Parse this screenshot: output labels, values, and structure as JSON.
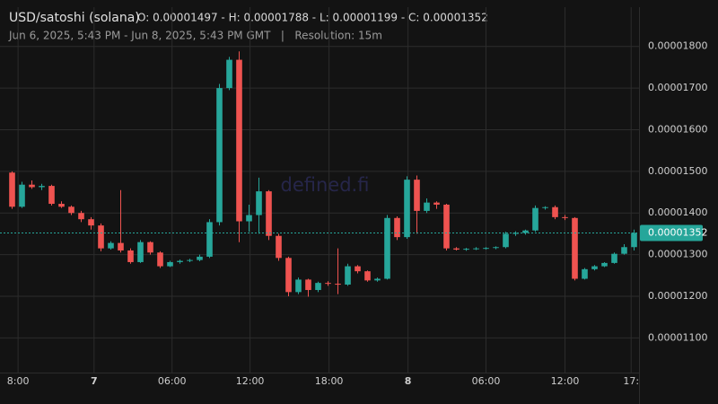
{
  "chart_data": {
    "type": "candlestick",
    "title": "USD/satoshi (solana)",
    "ohlc_text": "O: 0.00001497 - H: 0.00001788 - L: 0.00001199 - C: 0.00001352",
    "subtitle": "Jun 6, 2025, 5:43 PM - Jun 8, 2025, 5:43 PM GMT   |   Resolution: 15m",
    "watermark": "defined.fi",
    "up_color": "#26a69a",
    "down_color": "#ef5350",
    "grid": true,
    "xlim": [
      -0.5,
      63.5
    ],
    "xticks": [
      {
        "value": 0.6,
        "label": "8:00"
      },
      {
        "value": 8.3,
        "label": "7"
      },
      {
        "value": 16.2,
        "label": "06:00"
      },
      {
        "value": 24.1,
        "label": "12:00"
      },
      {
        "value": 32.1,
        "label": "18:00"
      },
      {
        "value": 40.1,
        "label": "8"
      },
      {
        "value": 48,
        "label": "06:00"
      },
      {
        "value": 56,
        "label": "12:00"
      },
      {
        "value": 62.7,
        "label": "17:"
      }
    ],
    "ylim": [
      9.8e-06,
      1.89e-05
    ],
    "yticks": [
      {
        "value": 1.1e-05,
        "label": "0.00001100"
      },
      {
        "value": 1.2e-05,
        "label": "0.00001200"
      },
      {
        "value": 1.3e-05,
        "label": "0.00001300"
      },
      {
        "value": 1.4e-05,
        "label": "0.00001400"
      },
      {
        "value": 1.5e-05,
        "label": "0.00001500"
      },
      {
        "value": 1.6e-05,
        "label": "0.00001600"
      },
      {
        "value": 1.7e-05,
        "label": "0.00001700"
      },
      {
        "value": 1.8e-05,
        "label": "0.00001800"
      }
    ],
    "last_price": 1.352e-05,
    "last_price_label": "0.00001352",
    "open": [
      1.497e-05,
      1.415e-05,
      1.468e-05,
      1.462e-05,
      1.465e-05,
      1.422e-05,
      1.415e-05,
      1.4e-05,
      1.385e-05,
      1.37e-05,
      1.315e-05,
      1.328e-05,
      1.31e-05,
      1.282e-05,
      1.33e-05,
      1.305e-05,
      1.272e-05,
      1.282e-05,
      1.285e-05,
      1.287e-05,
      1.295e-05,
      1.378e-05,
      1.7e-05,
      1.768e-05,
      1.38e-05,
      1.395e-05,
      1.452e-05,
      1.345e-05,
      1.292e-05,
      1.21e-05,
      1.24e-05,
      1.215e-05,
      1.232e-05,
      1.23e-05,
      1.228e-05,
      1.272e-05,
      1.26e-05,
      1.238e-05,
      1.242e-05,
      1.388e-05,
      1.342e-05,
      1.48e-05,
      1.405e-05,
      1.425e-05,
      1.42e-05,
      1.315e-05,
      1.312e-05,
      1.314e-05,
      1.315e-05,
      1.316e-05,
      1.318e-05,
      1.35e-05,
      1.352e-05,
      1.358e-05,
      1.412e-05,
      1.414e-05,
      1.39e-05,
      1.388e-05,
      1.242e-05,
      1.265e-05,
      1.272e-05,
      1.28e-05,
      1.302e-05,
      1.318e-05
    ],
    "high": [
      1.5e-05,
      1.475e-05,
      1.478e-05,
      1.47e-05,
      1.468e-05,
      1.428e-05,
      1.418e-05,
      1.405e-05,
      1.39e-05,
      1.375e-05,
      1.332e-05,
      1.455e-05,
      1.315e-05,
      1.335e-05,
      1.332e-05,
      1.308e-05,
      1.285e-05,
      1.288e-05,
      1.29e-05,
      1.3e-05,
      1.385e-05,
      1.71e-05,
      1.775e-05,
      1.788e-05,
      1.42e-05,
      1.485e-05,
      1.455e-05,
      1.35e-05,
      1.295e-05,
      1.245e-05,
      1.242e-05,
      1.235e-05,
      1.236e-05,
      1.315e-05,
      1.278e-05,
      1.275e-05,
      1.262e-05,
      1.245e-05,
      1.395e-05,
      1.392e-05,
      1.488e-05,
      1.49e-05,
      1.435e-05,
      1.428e-05,
      1.422e-05,
      1.318e-05,
      1.316e-05,
      1.318e-05,
      1.318e-05,
      1.32e-05,
      1.355e-05,
      1.356e-05,
      1.36e-05,
      1.418e-05,
      1.416e-05,
      1.418e-05,
      1.395e-05,
      1.39e-05,
      1.268e-05,
      1.275e-05,
      1.282e-05,
      1.305e-05,
      1.325e-05,
      1.36e-05
    ],
    "low": [
      1.41e-05,
      1.412e-05,
      1.458e-05,
      1.455e-05,
      1.418e-05,
      1.412e-05,
      1.395e-05,
      1.378e-05,
      1.36e-05,
      1.308e-05,
      1.312e-05,
      1.305e-05,
      1.278e-05,
      1.28e-05,
      1.3e-05,
      1.268e-05,
      1.27e-05,
      1.278e-05,
      1.282e-05,
      1.284e-05,
      1.292e-05,
      1.37e-05,
      1.695e-05,
      1.33e-05,
      1.355e-05,
      1.35e-05,
      1.335e-05,
      1.285e-05,
      1.2e-05,
      1.205e-05,
      1.199e-05,
      1.21e-05,
      1.225e-05,
      1.205e-05,
      1.225e-05,
      1.255e-05,
      1.235e-05,
      1.235e-05,
      1.24e-05,
      1.335e-05,
      1.338e-05,
      1.35e-05,
      1.4e-05,
      1.41e-05,
      1.31e-05,
      1.31e-05,
      1.309e-05,
      1.311e-05,
      1.312e-05,
      1.313e-05,
      1.315e-05,
      1.345e-05,
      1.348e-05,
      1.355e-05,
      1.408e-05,
      1.385e-05,
      1.383e-05,
      1.238e-05,
      1.24e-05,
      1.262e-05,
      1.27e-05,
      1.278e-05,
      1.3e-05,
      1.31e-05
    ],
    "close": [
      1.415e-05,
      1.468e-05,
      1.462e-05,
      1.465e-05,
      1.422e-05,
      1.415e-05,
      1.4e-05,
      1.385e-05,
      1.37e-05,
      1.315e-05,
      1.328e-05,
      1.31e-05,
      1.282e-05,
      1.33e-05,
      1.305e-05,
      1.272e-05,
      1.282e-05,
      1.285e-05,
      1.287e-05,
      1.295e-05,
      1.378e-05,
      1.7e-05,
      1.768e-05,
      1.38e-05,
      1.395e-05,
      1.452e-05,
      1.345e-05,
      1.292e-05,
      1.21e-05,
      1.24e-05,
      1.215e-05,
      1.232e-05,
      1.23e-05,
      1.228e-05,
      1.272e-05,
      1.26e-05,
      1.238e-05,
      1.242e-05,
      1.388e-05,
      1.342e-05,
      1.48e-05,
      1.405e-05,
      1.425e-05,
      1.42e-05,
      1.315e-05,
      1.312e-05,
      1.314e-05,
      1.315e-05,
      1.316e-05,
      1.318e-05,
      1.35e-05,
      1.352e-05,
      1.358e-05,
      1.412e-05,
      1.414e-05,
      1.39e-05,
      1.388e-05,
      1.242e-05,
      1.265e-05,
      1.272e-05,
      1.28e-05,
      1.302e-05,
      1.318e-05,
      1.352e-05
    ]
  }
}
